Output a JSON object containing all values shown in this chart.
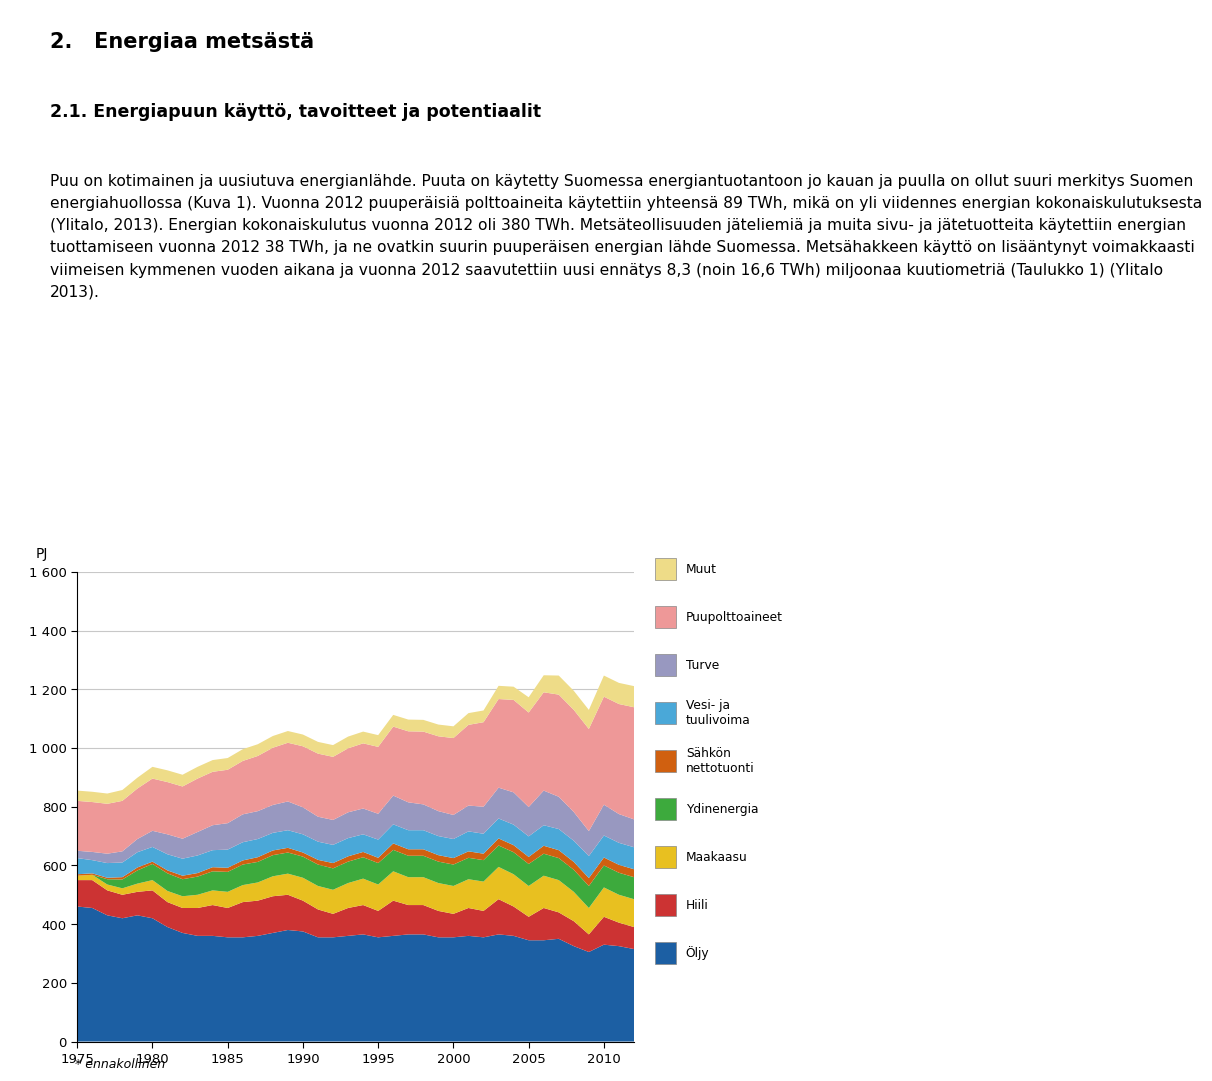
{
  "footnote": "* ennakollinen",
  "ylabel": "PJ",
  "ylim": [
    0,
    1600
  ],
  "yticks": [
    0,
    200,
    400,
    600,
    800,
    1000,
    1200,
    1400,
    1600
  ],
  "years": [
    1975,
    1976,
    1977,
    1978,
    1979,
    1980,
    1981,
    1982,
    1983,
    1984,
    1985,
    1986,
    1987,
    1988,
    1989,
    1990,
    1991,
    1992,
    1993,
    1994,
    1995,
    1996,
    1997,
    1998,
    1999,
    2000,
    2001,
    2002,
    2003,
    2004,
    2005,
    2006,
    2007,
    2008,
    2009,
    2010,
    2011,
    2012
  ],
  "series": {
    "Öljy": [
      460,
      455,
      430,
      420,
      430,
      420,
      390,
      370,
      360,
      360,
      355,
      355,
      360,
      370,
      380,
      375,
      355,
      355,
      360,
      365,
      355,
      360,
      365,
      365,
      355,
      355,
      360,
      355,
      365,
      360,
      345,
      345,
      350,
      325,
      305,
      330,
      325,
      315
    ],
    "Hiili": [
      90,
      95,
      85,
      80,
      80,
      95,
      85,
      85,
      95,
      105,
      100,
      120,
      120,
      125,
      120,
      105,
      95,
      80,
      95,
      100,
      90,
      120,
      100,
      100,
      90,
      80,
      95,
      90,
      120,
      100,
      80,
      110,
      90,
      85,
      60,
      95,
      80,
      75
    ],
    "Maakaasu": [
      15,
      18,
      20,
      22,
      28,
      35,
      38,
      40,
      45,
      50,
      55,
      58,
      62,
      68,
      72,
      78,
      80,
      82,
      85,
      90,
      90,
      100,
      95,
      95,
      95,
      95,
      98,
      100,
      110,
      110,
      105,
      110,
      110,
      100,
      90,
      100,
      95,
      95
    ],
    "Ydinenergia": [
      0,
      0,
      18,
      30,
      45,
      55,
      60,
      58,
      62,
      65,
      68,
      70,
      70,
      72,
      72,
      72,
      73,
      73,
      73,
      73,
      73,
      73,
      73,
      73,
      73,
      73,
      73,
      73,
      73,
      75,
      75,
      75,
      75,
      75,
      75,
      75,
      75,
      75
    ],
    "Sähkön nettotuonti": [
      5,
      5,
      5,
      8,
      10,
      8,
      10,
      12,
      12,
      14,
      14,
      14,
      16,
      16,
      16,
      14,
      16,
      18,
      18,
      18,
      18,
      22,
      22,
      22,
      22,
      22,
      22,
      22,
      24,
      24,
      24,
      27,
      27,
      27,
      27,
      27,
      27,
      27
    ],
    "Vesi- ja tuulivoima": [
      55,
      45,
      50,
      50,
      52,
      50,
      55,
      58,
      60,
      58,
      62,
      62,
      62,
      60,
      60,
      62,
      62,
      62,
      62,
      60,
      62,
      65,
      65,
      65,
      65,
      65,
      68,
      68,
      68,
      70,
      70,
      70,
      72,
      72,
      75,
      75,
      75,
      75
    ],
    "Turve": [
      25,
      28,
      32,
      38,
      45,
      55,
      68,
      68,
      80,
      85,
      90,
      95,
      95,
      95,
      98,
      92,
      85,
      85,
      88,
      88,
      88,
      98,
      95,
      88,
      85,
      82,
      88,
      92,
      105,
      110,
      100,
      118,
      110,
      98,
      85,
      105,
      98,
      95
    ],
    "Puupolttoaineet": [
      170,
      170,
      170,
      172,
      172,
      178,
      178,
      178,
      182,
      182,
      182,
      182,
      188,
      195,
      200,
      208,
      215,
      215,
      218,
      222,
      228,
      235,
      242,
      248,
      255,
      262,
      275,
      288,
      302,
      315,
      322,
      335,
      348,
      348,
      348,
      368,
      375,
      382
    ],
    "Muut": [
      35,
      35,
      35,
      37,
      37,
      40,
      40,
      40,
      40,
      40,
      40,
      40,
      40,
      40,
      40,
      40,
      40,
      40,
      40,
      40,
      40,
      40,
      40,
      40,
      40,
      40,
      40,
      40,
      45,
      45,
      52,
      58,
      65,
      65,
      65,
      72,
      72,
      72
    ]
  },
  "colors": {
    "Öljy": "#1C5FA3",
    "Hiili": "#CC3333",
    "Maakaasu": "#E8C020",
    "Ydinenergia": "#3DAA3D",
    "Sähkön nettotuonti": "#D06010",
    "Vesi- ja tuulivoima": "#4AA8D8",
    "Turve": "#9898C0",
    "Puupolttoaineet": "#EE9898",
    "Muut": "#EEDC88"
  },
  "legend_order": [
    "Muut",
    "Puupolttoaineet",
    "Turve",
    "Vesi- ja tuulivoima",
    "Sähkön nettotuonti",
    "Ydinenergia",
    "Maakaasu",
    "Hiili",
    "Öljy"
  ],
  "xticks": [
    1975,
    1980,
    1985,
    1990,
    1995,
    2000,
    2005,
    2010
  ],
  "xlim": [
    1975,
    2012
  ],
  "heading1": "2.   Energiaa metsästä",
  "heading2": "2.1. Energiapuun käyttö, tavoitteet ja potentiaalit",
  "body_lines": [
    "Puu on kotimainen ja uusiutuva energianlähde. Puuta on käytetty Suomessa energiantuotantoon jo kauan ja puulla on ollut suuri merkitys Suomen",
    "energiahuollossa (Kuva 1). Vuonna 2012 puuperäisiä polttoaineita käytettiin yhteensä 89 TWh, mikä on yli viidennes energian kokonaiskulutuksesta",
    "(Ylitalo, 2013). Energian kokonaiskulutus vuonna 2012 oli 380 TWh. Metsäteollisuuden jäteliemiä ja muita sivu- ja jätetuotteita käytettiin energian",
    "tuottamiseen vuonna 2012 38 TWh, ja ne ovatkin suurin puuperäisen energian lähde Suomessa. Metsähakkeen käyttö on lisääntynyt voimakkaasti",
    "viimeisen kymmenen vuoden aikana ja vuonna 2012 saavutettiin uusi ennätys 8,3 (noin 16,6 TWh) miljoonaa kuutiometriä (Taulukko 1) (Ylitalo",
    "2013)."
  ]
}
